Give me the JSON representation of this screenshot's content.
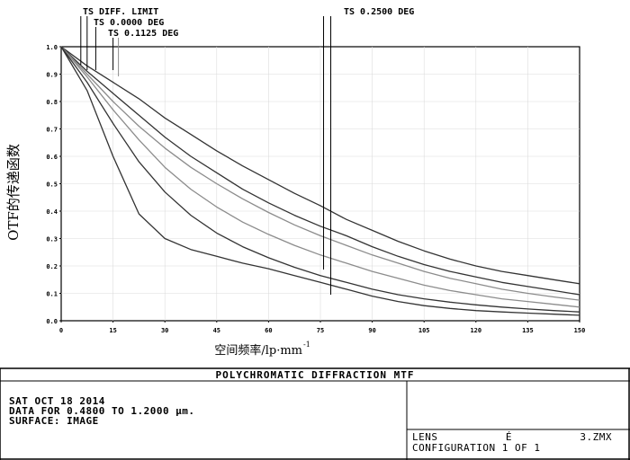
{
  "chart_data": {
    "type": "line",
    "title": "POLYCHROMATIC DIFFRACTION MTF",
    "ylabel": "OTF的传递函数",
    "xlabel": "空间频率/lp·mm",
    "xlabel_sup": "-1",
    "xlim": [
      0,
      150
    ],
    "ylim": [
      0,
      1.0
    ],
    "x_ticks": [
      "0",
      "15",
      "30",
      "45",
      "60",
      "75",
      "90",
      "105",
      "120",
      "135",
      "150"
    ],
    "y_ticks": [
      "1.0",
      "0.9",
      "0.8",
      "0.7",
      "0.6",
      "0.5",
      "0.4",
      "0.3",
      "0.2",
      "0.1",
      "0.0"
    ],
    "field_labels": [
      {
        "text": "TS DIFF. LIMIT",
        "x": 7.5
      },
      {
        "text": "TS 0.0000 DEG",
        "x": 10
      },
      {
        "text": "TS 0.1125 DEG",
        "x": 15
      },
      {
        "text": "TS 0.2500 DEG",
        "x": 78
      }
    ],
    "x": [
      0,
      7.5,
      15,
      22.5,
      30,
      37.5,
      45,
      52.5,
      60,
      67.5,
      75,
      82.5,
      90,
      97.5,
      105,
      112.5,
      120,
      127.5,
      135,
      142.5,
      150
    ],
    "series": [
      {
        "color": "#333333",
        "values": [
          1.0,
          0.93,
          0.87,
          0.81,
          0.74,
          0.68,
          0.62,
          0.565,
          0.515,
          0.465,
          0.42,
          0.37,
          0.33,
          0.29,
          0.255,
          0.225,
          0.2,
          0.18,
          0.165,
          0.15,
          0.135
        ]
      },
      {
        "color": "#333333",
        "values": [
          1.0,
          0.91,
          0.83,
          0.75,
          0.67,
          0.6,
          0.54,
          0.48,
          0.43,
          0.385,
          0.345,
          0.31,
          0.27,
          0.235,
          0.205,
          0.18,
          0.16,
          0.14,
          0.125,
          0.11,
          0.095
        ]
      },
      {
        "color": "#8c8c8c",
        "values": [
          1.0,
          0.9,
          0.8,
          0.71,
          0.63,
          0.56,
          0.5,
          0.445,
          0.395,
          0.35,
          0.31,
          0.275,
          0.24,
          0.21,
          0.18,
          0.155,
          0.135,
          0.115,
          0.1,
          0.087,
          0.075
        ]
      },
      {
        "color": "#8c8c8c",
        "values": [
          1.0,
          0.89,
          0.77,
          0.66,
          0.56,
          0.48,
          0.415,
          0.36,
          0.315,
          0.275,
          0.24,
          0.21,
          0.18,
          0.155,
          0.13,
          0.11,
          0.095,
          0.08,
          0.07,
          0.06,
          0.05
        ]
      },
      {
        "color": "#333333",
        "values": [
          1.0,
          0.87,
          0.72,
          0.58,
          0.47,
          0.385,
          0.32,
          0.27,
          0.23,
          0.195,
          0.165,
          0.14,
          0.115,
          0.095,
          0.08,
          0.068,
          0.058,
          0.05,
          0.043,
          0.037,
          0.032
        ]
      },
      {
        "color": "#333333",
        "values": [
          1.0,
          0.84,
          0.6,
          0.39,
          0.3,
          0.26,
          0.235,
          0.21,
          0.19,
          0.165,
          0.14,
          0.115,
          0.09,
          0.07,
          0.055,
          0.045,
          0.037,
          0.032,
          0.028,
          0.024,
          0.02
        ]
      }
    ]
  },
  "info": {
    "date": "SAT OCT 18 2014",
    "data_range": "DATA FOR 0.4800 TO 1.2000 μm.",
    "surface": "SURFACE: IMAGE"
  },
  "lens": {
    "name_label": "LENS",
    "name_value": "É",
    "file": "3.ZMX",
    "configuration": "CONFIGURATION 1 OF 1"
  }
}
